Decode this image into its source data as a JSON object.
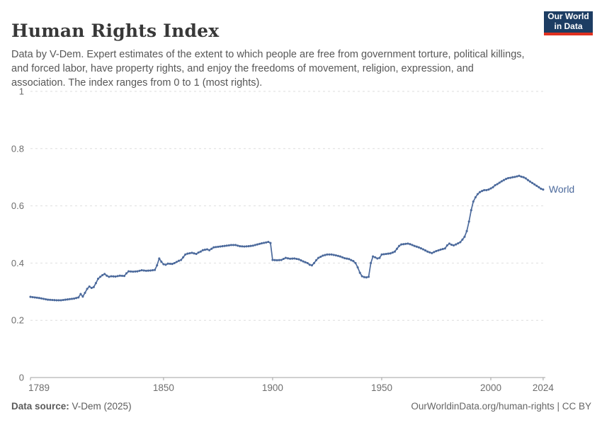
{
  "header": {
    "title": "Human Rights Index",
    "subtitle": "Data by V-Dem. Expert estimates of the extent to which people are free from government torture, political killings, and forced labor, have property rights, and enjoy the freedoms of movement, religion, expression, and association. The index ranges from 0 to 1 (most rights).",
    "logo": {
      "line1": "Our World",
      "line2": "in Data",
      "bg_color": "#1d3d63",
      "accent_color": "#e0311f"
    }
  },
  "chart_data": {
    "type": "line",
    "title": "Human Rights Index",
    "xlabel": "",
    "ylabel": "",
    "xlim": [
      1789,
      2025
    ],
    "ylim": [
      0,
      1
    ],
    "xticks": [
      1789,
      1850,
      1900,
      1950,
      2000,
      2024
    ],
    "yticks": [
      0,
      0.2,
      0.4,
      0.6,
      0.8,
      1
    ],
    "grid": "dashed-horizontal",
    "legend_position": "end-of-line-label",
    "colors": {
      "line": "#4C6A9C",
      "grid": "#dedede",
      "axis": "#a1a1a1",
      "tick_label": "#6e6e6e"
    },
    "series": [
      {
        "name": "World",
        "points": [
          [
            1789,
            0.282
          ],
          [
            1791,
            0.28
          ],
          [
            1793,
            0.278
          ],
          [
            1795,
            0.275
          ],
          [
            1797,
            0.272
          ],
          [
            1799,
            0.271
          ],
          [
            1801,
            0.27
          ],
          [
            1803,
            0.27
          ],
          [
            1805,
            0.272
          ],
          [
            1807,
            0.274
          ],
          [
            1809,
            0.276
          ],
          [
            1811,
            0.28
          ],
          [
            1812,
            0.292
          ],
          [
            1813,
            0.283
          ],
          [
            1814,
            0.296
          ],
          [
            1815,
            0.31
          ],
          [
            1816,
            0.318
          ],
          [
            1817,
            0.313
          ],
          [
            1818,
            0.316
          ],
          [
            1819,
            0.33
          ],
          [
            1820,
            0.345
          ],
          [
            1821,
            0.352
          ],
          [
            1822,
            0.358
          ],
          [
            1823,
            0.362
          ],
          [
            1824,
            0.356
          ],
          [
            1825,
            0.352
          ],
          [
            1826,
            0.354
          ],
          [
            1828,
            0.353
          ],
          [
            1830,
            0.356
          ],
          [
            1832,
            0.355
          ],
          [
            1833,
            0.364
          ],
          [
            1834,
            0.371
          ],
          [
            1836,
            0.37
          ],
          [
            1838,
            0.371
          ],
          [
            1840,
            0.375
          ],
          [
            1842,
            0.373
          ],
          [
            1844,
            0.374
          ],
          [
            1846,
            0.376
          ],
          [
            1847,
            0.392
          ],
          [
            1848,
            0.416
          ],
          [
            1849,
            0.405
          ],
          [
            1850,
            0.396
          ],
          [
            1851,
            0.394
          ],
          [
            1852,
            0.398
          ],
          [
            1854,
            0.397
          ],
          [
            1855,
            0.4
          ],
          [
            1856,
            0.404
          ],
          [
            1857,
            0.408
          ],
          [
            1858,
            0.411
          ],
          [
            1859,
            0.42
          ],
          [
            1860,
            0.43
          ],
          [
            1861,
            0.433
          ],
          [
            1863,
            0.436
          ],
          [
            1865,
            0.432
          ],
          [
            1866,
            0.437
          ],
          [
            1867,
            0.44
          ],
          [
            1868,
            0.445
          ],
          [
            1870,
            0.448
          ],
          [
            1871,
            0.445
          ],
          [
            1873,
            0.455
          ],
          [
            1875,
            0.457
          ],
          [
            1877,
            0.459
          ],
          [
            1879,
            0.461
          ],
          [
            1881,
            0.463
          ],
          [
            1883,
            0.463
          ],
          [
            1885,
            0.459
          ],
          [
            1887,
            0.458
          ],
          [
            1889,
            0.459
          ],
          [
            1891,
            0.461
          ],
          [
            1893,
            0.465
          ],
          [
            1895,
            0.469
          ],
          [
            1897,
            0.472
          ],
          [
            1898,
            0.474
          ],
          [
            1899,
            0.47
          ],
          [
            1900,
            0.411
          ],
          [
            1902,
            0.41
          ],
          [
            1904,
            0.411
          ],
          [
            1906,
            0.418
          ],
          [
            1908,
            0.415
          ],
          [
            1910,
            0.416
          ],
          [
            1912,
            0.413
          ],
          [
            1914,
            0.406
          ],
          [
            1916,
            0.4
          ],
          [
            1917,
            0.394
          ],
          [
            1918,
            0.392
          ],
          [
            1919,
            0.4
          ],
          [
            1920,
            0.41
          ],
          [
            1921,
            0.418
          ],
          [
            1922,
            0.422
          ],
          [
            1923,
            0.426
          ],
          [
            1925,
            0.43
          ],
          [
            1927,
            0.43
          ],
          [
            1929,
            0.427
          ],
          [
            1931,
            0.423
          ],
          [
            1933,
            0.417
          ],
          [
            1935,
            0.414
          ],
          [
            1937,
            0.407
          ],
          [
            1938,
            0.4
          ],
          [
            1939,
            0.385
          ],
          [
            1940,
            0.366
          ],
          [
            1941,
            0.354
          ],
          [
            1942,
            0.351
          ],
          [
            1943,
            0.35
          ],
          [
            1944,
            0.352
          ],
          [
            1945,
            0.4
          ],
          [
            1946,
            0.423
          ],
          [
            1947,
            0.42
          ],
          [
            1948,
            0.416
          ],
          [
            1949,
            0.418
          ],
          [
            1950,
            0.43
          ],
          [
            1952,
            0.432
          ],
          [
            1954,
            0.434
          ],
          [
            1956,
            0.44
          ],
          [
            1957,
            0.45
          ],
          [
            1958,
            0.46
          ],
          [
            1959,
            0.465
          ],
          [
            1961,
            0.467
          ],
          [
            1962,
            0.468
          ],
          [
            1963,
            0.466
          ],
          [
            1965,
            0.46
          ],
          [
            1967,
            0.455
          ],
          [
            1969,
            0.448
          ],
          [
            1971,
            0.44
          ],
          [
            1973,
            0.435
          ],
          [
            1975,
            0.442
          ],
          [
            1977,
            0.447
          ],
          [
            1979,
            0.451
          ],
          [
            1980,
            0.462
          ],
          [
            1981,
            0.468
          ],
          [
            1982,
            0.464
          ],
          [
            1983,
            0.462
          ],
          [
            1984,
            0.465
          ],
          [
            1985,
            0.469
          ],
          [
            1986,
            0.473
          ],
          [
            1987,
            0.482
          ],
          [
            1988,
            0.492
          ],
          [
            1989,
            0.512
          ],
          [
            1990,
            0.545
          ],
          [
            1991,
            0.585
          ],
          [
            1992,
            0.615
          ],
          [
            1993,
            0.63
          ],
          [
            1994,
            0.641
          ],
          [
            1995,
            0.648
          ],
          [
            1996,
            0.652
          ],
          [
            1997,
            0.655
          ],
          [
            1998,
            0.655
          ],
          [
            1999,
            0.657
          ],
          [
            2000,
            0.661
          ],
          [
            2001,
            0.665
          ],
          [
            2002,
            0.672
          ],
          [
            2003,
            0.676
          ],
          [
            2004,
            0.681
          ],
          [
            2005,
            0.686
          ],
          [
            2006,
            0.69
          ],
          [
            2007,
            0.694
          ],
          [
            2008,
            0.697
          ],
          [
            2009,
            0.698
          ],
          [
            2010,
            0.7
          ],
          [
            2011,
            0.701
          ],
          [
            2012,
            0.703
          ],
          [
            2013,
            0.705
          ],
          [
            2014,
            0.702
          ],
          [
            2015,
            0.7
          ],
          [
            2016,
            0.696
          ],
          [
            2017,
            0.69
          ],
          [
            2018,
            0.685
          ],
          [
            2019,
            0.68
          ],
          [
            2020,
            0.675
          ],
          [
            2021,
            0.67
          ],
          [
            2022,
            0.665
          ],
          [
            2023,
            0.66
          ],
          [
            2024,
            0.657
          ]
        ]
      }
    ]
  },
  "footer": {
    "source_label": "Data source:",
    "source_value": " V-Dem (2025)",
    "credit": "OurWorldinData.org/human-rights | CC BY"
  }
}
